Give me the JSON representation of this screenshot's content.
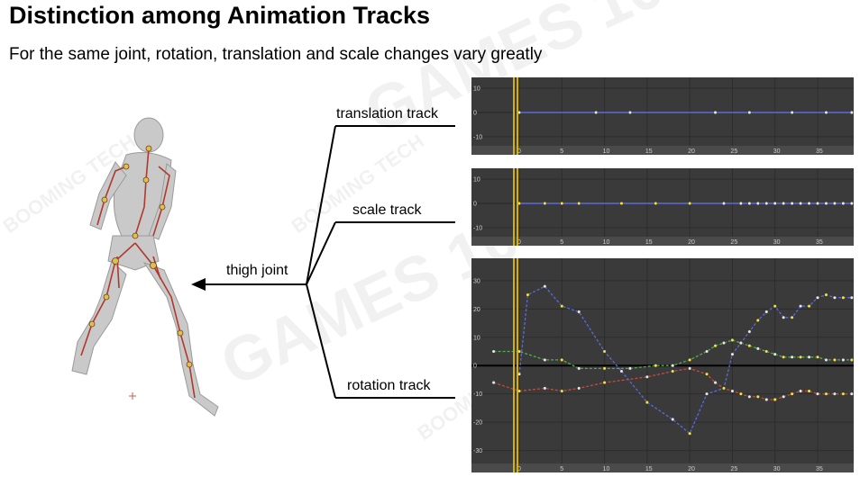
{
  "title": "Distinction among Animation Tracks",
  "subtitle": "For the same joint, rotation, translation and scale changes vary greatly",
  "labels": {
    "joint": "thigh joint",
    "translation": "translation track",
    "scale": "scale track",
    "rotation": "rotation track"
  },
  "watermark": {
    "text": "GAMES 104",
    "brand": "BOOMING TECH"
  },
  "colors": {
    "panel": "#3a3a3a",
    "playhead": "#d4b000",
    "blue_curve": "#5a6bd6",
    "green_curve": "#4fb04f",
    "red_curve": "#c84a3a",
    "arrow": "#000000",
    "skeleton": "#b0392b"
  },
  "chart_data": [
    {
      "name": "translation track",
      "type": "line",
      "x_ticks": [
        "0",
        "5",
        "10",
        "15",
        "20",
        "25",
        "30",
        "35"
      ],
      "y_ticks": [
        "10",
        "0",
        "-10"
      ],
      "ylim": [
        -13,
        13
      ],
      "playhead_x": 0,
      "series": [
        {
          "color": "blue",
          "x": [
            0,
            9,
            13,
            23,
            27,
            32,
            36,
            39
          ],
          "y": [
            0,
            0,
            0,
            0,
            0,
            0,
            0,
            0
          ]
        }
      ]
    },
    {
      "name": "scale track",
      "type": "line",
      "x_ticks": [
        "0",
        "5",
        "10",
        "15",
        "20",
        "25",
        "30",
        "35"
      ],
      "y_ticks": [
        "10",
        "0",
        "-10"
      ],
      "ylim": [
        -13,
        13
      ],
      "playhead_x": 0,
      "series": [
        {
          "color": "blue",
          "x": [
            0,
            3,
            5,
            7,
            12,
            16,
            20,
            24,
            26,
            27,
            28,
            29,
            30,
            31,
            32,
            33,
            34,
            35,
            36,
            37,
            38,
            39
          ],
          "y": [
            0,
            0,
            0,
            0,
            0,
            0,
            0,
            0,
            0,
            0,
            0,
            0,
            0,
            0,
            0,
            0,
            0,
            0,
            0,
            0,
            0,
            0
          ]
        }
      ]
    },
    {
      "name": "rotation track",
      "type": "line",
      "x_ticks": [
        "0",
        "5",
        "10",
        "15",
        "20",
        "25",
        "30",
        "35"
      ],
      "y_ticks": [
        "30",
        "20",
        "10",
        "0",
        "-10",
        "-20",
        "-30"
      ],
      "ylim": [
        -33,
        36
      ],
      "playhead_x": 0,
      "series": [
        {
          "color": "blue",
          "x": [
            0,
            1,
            3,
            5,
            7,
            10,
            12,
            15,
            18,
            20,
            22,
            24,
            25,
            26,
            27,
            28,
            29,
            30,
            31,
            32,
            33,
            34,
            35,
            36,
            37,
            38,
            39
          ],
          "y": [
            -3,
            25,
            28,
            21,
            19,
            5,
            -2,
            -13,
            -19,
            -24,
            -10,
            -8,
            4,
            8,
            12,
            16,
            19,
            21,
            17,
            17,
            21,
            21,
            24,
            25,
            24,
            24,
            24
          ]
        },
        {
          "color": "green",
          "x": [
            -3,
            0,
            3,
            5,
            7,
            10,
            13,
            16,
            18,
            20,
            22,
            23,
            24,
            25,
            26,
            27,
            28,
            29,
            30,
            31,
            32,
            33,
            34,
            35,
            36,
            37,
            38,
            39
          ],
          "y": [
            5,
            5,
            2,
            2,
            -1,
            -1,
            -1,
            0,
            0,
            2,
            5,
            7,
            8,
            9,
            8,
            7,
            6,
            5,
            4,
            3,
            3,
            3,
            3,
            3,
            2,
            2,
            2,
            2
          ]
        },
        {
          "color": "red",
          "x": [
            -3,
            0,
            3,
            5,
            7,
            10,
            15,
            18,
            20,
            22,
            23,
            24,
            25,
            26,
            27,
            28,
            29,
            30,
            31,
            32,
            33,
            34,
            35,
            36,
            37,
            38,
            39
          ],
          "y": [
            -6,
            -9,
            -8,
            -9,
            -8,
            -6,
            -4,
            -2,
            -1,
            -3,
            -6,
            -8,
            -9,
            -10,
            -11,
            -11,
            -12,
            -12,
            -11,
            -10,
            -9,
            -9,
            -10,
            -10,
            -10,
            -10,
            -10
          ]
        }
      ]
    }
  ]
}
